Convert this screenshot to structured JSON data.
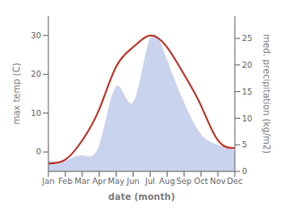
{
  "chart_data": {
    "type": "line",
    "xlabel": "date (month)",
    "ylabel": "max temp (C)",
    "y2label": "med. precipitation (kg/m2)",
    "categories": [
      "Jan",
      "Feb",
      "Mar",
      "Apr",
      "May",
      "Jun",
      "Jul",
      "Aug",
      "Sep",
      "Oct",
      "Nov",
      "Dec"
    ],
    "series": [
      {
        "type": "area",
        "axis": "y2",
        "color": "#b8c4e8",
        "values": [
          2,
          2,
          3,
          5,
          16,
          13,
          25,
          21,
          13,
          7,
          5,
          4
        ]
      },
      {
        "type": "line",
        "color": "#c0392b",
        "values": [
          -3,
          -2,
          3,
          11,
          22,
          27,
          30,
          27,
          20,
          12,
          3,
          1
        ]
      }
    ],
    "ylim": [
      -5,
      35
    ],
    "yticks": [
      0,
      10,
      20,
      30
    ],
    "y2lim": [
      0,
      29.2
    ],
    "y2ticks": [
      0,
      5,
      10,
      15,
      20,
      25
    ],
    "grid": false
  }
}
